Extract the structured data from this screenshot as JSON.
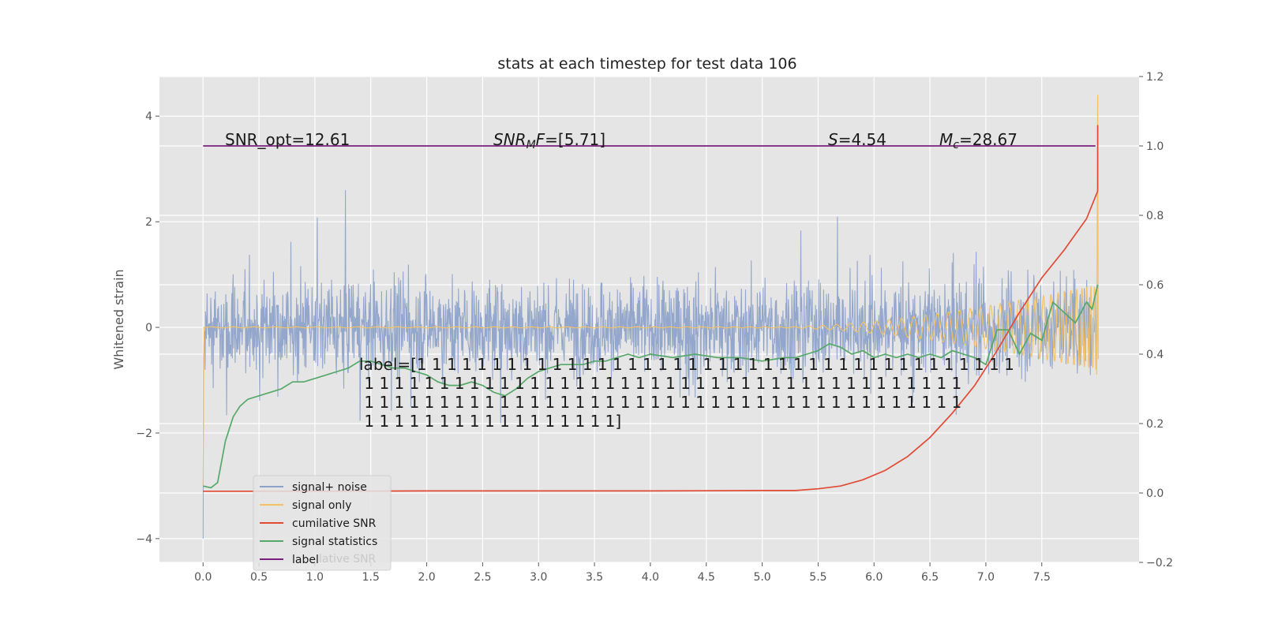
{
  "chart_data": {
    "type": "line",
    "title": "stats at each timestep for test data 106",
    "xlabel": "",
    "ylabel": "Whitened strain",
    "xlim": [
      -0.39,
      8.37
    ],
    "ylim": [
      -4.45,
      4.75
    ],
    "y2lim": [
      -0.2,
      1.2
    ],
    "grid": true,
    "x_ticks": [
      0.0,
      0.5,
      1.0,
      1.5,
      2.0,
      2.5,
      3.0,
      3.5,
      4.0,
      4.5,
      5.0,
      5.5,
      6.0,
      6.5,
      7.0,
      7.5
    ],
    "x_tick_labels": [
      "0.0",
      "0.5",
      "1.0",
      "1.5",
      "2.0",
      "2.5",
      "3.0",
      "3.5",
      "4.0",
      "4.5",
      "5.0",
      "5.5",
      "6.0",
      "6.5",
      "7.0",
      "7.5"
    ],
    "y_ticks": [
      4,
      2,
      0,
      -2,
      -4
    ],
    "y_tick_labels": [
      "4",
      "2",
      "0",
      "−2",
      "−4"
    ],
    "y2_ticks": [
      1.2,
      1.0,
      0.8,
      0.6,
      0.4,
      0.2,
      0.0,
      -0.2
    ],
    "y2_tick_labels": [
      "1.2",
      "1.0",
      "0.8",
      "0.6",
      "0.4",
      "0.2",
      "0.0",
      "−0.2"
    ],
    "series": [
      {
        "name": "signal+ noise",
        "axis": "left",
        "color": "#8ea2c9",
        "kind": "noise",
        "description_values": {
          "x_range": [
            0.0,
            8.0
          ],
          "typical_range": [
            -1.3,
            1.3
          ],
          "extremes": [
            -4.0,
            2.6
          ]
        }
      },
      {
        "name": "signal only",
        "axis": "left",
        "color": "#f2c265",
        "kind": "chirp",
        "values": {
          "x_start": 0.0,
          "x_end": 8.0,
          "flat_until": 5.2,
          "end_amplitude": 0.8,
          "spike": 4.4
        }
      },
      {
        "name": "cumilative SNR",
        "axis": "right",
        "color": "#e24a33",
        "x": [
          0.0,
          1.0,
          2.0,
          3.0,
          4.0,
          5.0,
          5.3,
          5.5,
          5.7,
          5.9,
          6.1,
          6.3,
          6.5,
          6.7,
          6.9,
          7.1,
          7.3,
          7.5,
          7.7,
          7.9,
          7.95,
          8.0
        ],
        "y": [
          0.005,
          0.005,
          0.006,
          0.006,
          0.006,
          0.007,
          0.007,
          0.012,
          0.02,
          0.038,
          0.065,
          0.105,
          0.16,
          0.23,
          0.31,
          0.41,
          0.52,
          0.62,
          0.7,
          0.79,
          0.83,
          0.87
        ]
      },
      {
        "name": "signal statistics",
        "axis": "right",
        "color": "#55a868",
        "x": [
          0.0,
          0.07,
          0.13,
          0.2,
          0.27,
          0.33,
          0.4,
          0.5,
          0.6,
          0.7,
          0.8,
          0.9,
          1.0,
          1.1,
          1.2,
          1.3,
          1.4,
          1.5,
          1.6,
          1.7,
          1.8,
          1.9,
          2.0,
          2.1,
          2.2,
          2.3,
          2.4,
          2.5,
          2.6,
          2.7,
          2.8,
          2.9,
          3.0,
          3.1,
          3.2,
          3.3,
          3.4,
          3.5,
          3.6,
          3.7,
          3.8,
          3.9,
          4.0,
          4.2,
          4.4,
          4.6,
          4.8,
          5.0,
          5.2,
          5.3,
          5.4,
          5.5,
          5.6,
          5.7,
          5.8,
          5.9,
          6.0,
          6.1,
          6.2,
          6.3,
          6.4,
          6.5,
          6.6,
          6.7,
          6.8,
          6.9,
          7.0,
          7.1,
          7.2,
          7.3,
          7.4,
          7.5,
          7.6,
          7.7,
          7.8,
          7.9,
          7.95,
          8.0
        ],
        "y": [
          0.02,
          0.015,
          0.03,
          0.15,
          0.22,
          0.25,
          0.27,
          0.28,
          0.29,
          0.3,
          0.32,
          0.32,
          0.33,
          0.34,
          0.35,
          0.36,
          0.38,
          0.38,
          0.37,
          0.36,
          0.36,
          0.35,
          0.34,
          0.32,
          0.31,
          0.31,
          0.32,
          0.31,
          0.29,
          0.28,
          0.3,
          0.33,
          0.35,
          0.36,
          0.37,
          0.37,
          0.37,
          0.38,
          0.38,
          0.39,
          0.4,
          0.39,
          0.4,
          0.39,
          0.4,
          0.39,
          0.39,
          0.38,
          0.39,
          0.39,
          0.4,
          0.41,
          0.43,
          0.42,
          0.4,
          0.41,
          0.39,
          0.4,
          0.39,
          0.4,
          0.39,
          0.4,
          0.39,
          0.41,
          0.4,
          0.39,
          0.37,
          0.47,
          0.47,
          0.4,
          0.46,
          0.44,
          0.55,
          0.52,
          0.49,
          0.55,
          0.53,
          0.6
        ]
      },
      {
        "name": "label",
        "axis": "right",
        "color": "#7b1f7e",
        "x": [
          0.0,
          7.98
        ],
        "y": [
          1.0,
          1.0
        ]
      }
    ],
    "annotations": [
      "SNR_opt=12.61",
      "SNR_MF=[5.71]",
      "S=4.54",
      "M_c=28.67"
    ],
    "label_text_lines": [
      "label=[1 1 1 1 1 1 1 1 1 1 1 1 1 1 1 1 1 1 1 1 1 1 1 1 1 1 1 1 1 1 1 1 1 1 1 1 1 1 1 1",
      " 1 1 1 1 1 1 1 1 1 1 1 1 1 1 1 1 1 1 1 1 1 1 1 1 1 1 1 1 1 1 1 1 1 1 1 1 1 1 1 1",
      " 1 1 1 1 1 1 1 1 1 1 1 1 1 1 1 1 1 1 1 1 1 1 1 1 1 1 1 1 1 1 1 1 1 1 1 1 1 1 1 1",
      " 1 1 1 1 1 1 1 1 1 1 1 1 1 1 1 1 1]"
    ],
    "legend": {
      "position": "lower-left",
      "entries": [
        "signal+ noise",
        "signal only",
        "cumilative SNR",
        "signal statistics",
        "label"
      ],
      "ghost_text": "lative SNR"
    }
  },
  "text": {
    "title": "stats at each timestep for test data 106",
    "ylabel": "Whitened strain",
    "annot_snr_opt": "SNR_opt=12.61",
    "annot_snr_mf_main": "SNR",
    "annot_snr_mf_sub": "M",
    "annot_snr_mf_rest_italic": "F",
    "annot_snr_mf_value": "=[5.71]",
    "annot_s_symbol": "S",
    "annot_s_value": "=4.54",
    "annot_mc_symbol": "M",
    "annot_mc_sub": "c",
    "annot_mc_value": "=28.67"
  }
}
